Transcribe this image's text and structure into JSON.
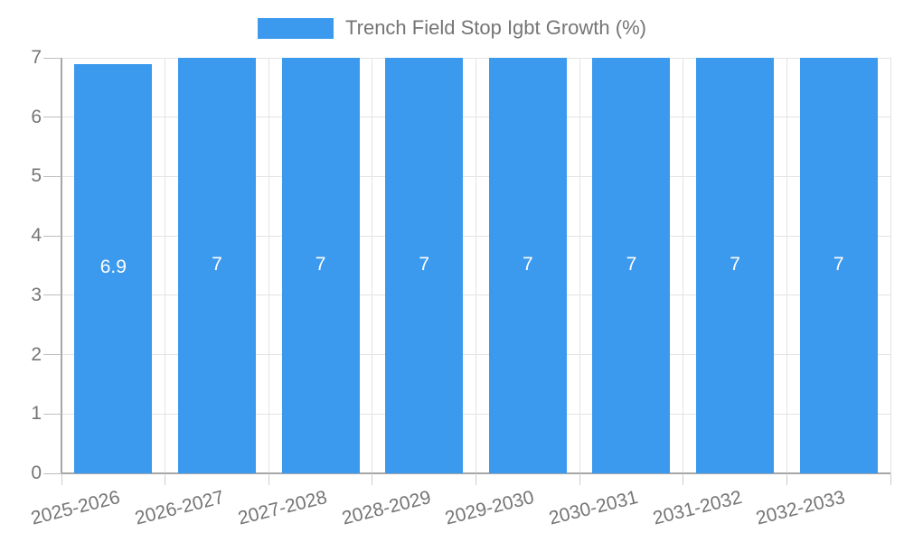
{
  "legend": {
    "label": "Trench Field Stop Igbt Growth (%)",
    "swatch_color": "#3C9AEE"
  },
  "chart_data": {
    "type": "bar",
    "title": "Trench Field Stop Igbt Growth (%)",
    "categories": [
      "2025-2026",
      "2026-2027",
      "2027-2028",
      "2028-2029",
      "2029-2030",
      "2030-2031",
      "2031-2032",
      "2032-2033"
    ],
    "values": [
      6.9,
      7,
      7,
      7,
      7,
      7,
      7,
      7
    ],
    "bar_value_labels": [
      "6.9",
      "7",
      "7",
      "7",
      "7",
      "7",
      "7",
      "7"
    ],
    "xlabel": "",
    "ylabel": "",
    "ylim": [
      0,
      7
    ],
    "yticks": [
      0,
      1,
      2,
      3,
      4,
      5,
      6,
      7
    ],
    "grid": true,
    "legend_position": "top-center",
    "bar_color": "#3C9AEE",
    "value_label_color": "#ffffff",
    "axis_text_color": "#757575",
    "gridline_color": "#e3e3e3",
    "axis_line_color": "#a6a6a6"
  }
}
